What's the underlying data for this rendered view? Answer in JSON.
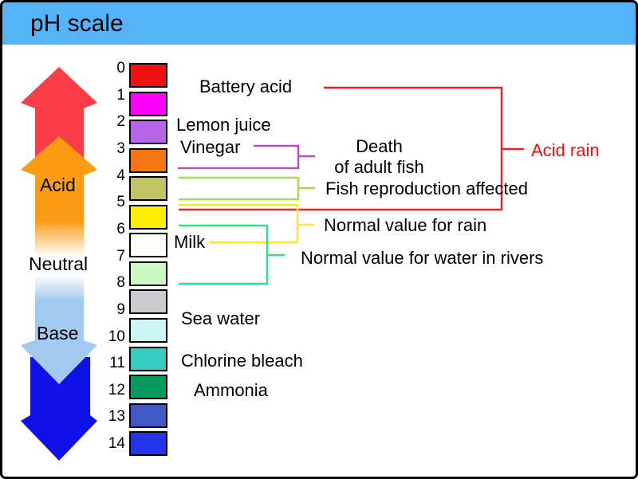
{
  "title": "pH scale",
  "colors": {
    "title_bar": "#55B3F7",
    "arrow_red": "#FA3E48",
    "arrow_orange": "#FA9B13",
    "arrow_light_blue": "#A2C9F0",
    "arrow_dark_blue": "#1010E8",
    "line_red": "#EE2222",
    "line_purple": "#BB4CCB",
    "line_yellow_green": "#A8DC50",
    "line_yellow": "#FFE63C",
    "line_green": "#2EE188",
    "acid_rain_text": "#EE1111"
  },
  "arrow": {
    "acid": "Acid",
    "neutral": "Neutral",
    "base": "Base"
  },
  "scale": {
    "numbers": [
      "0",
      "1",
      "2",
      "3",
      "4",
      "5",
      "6",
      "7",
      "8",
      "9",
      "10",
      "11",
      "12",
      "13",
      "14"
    ],
    "swatches": [
      {
        "range": "0-1",
        "color": "#EE1111"
      },
      {
        "range": "1-2",
        "color": "#FB00FB"
      },
      {
        "range": "2-3",
        "color": "#B965E9"
      },
      {
        "range": "3-4",
        "color": "#F57510"
      },
      {
        "range": "4-5",
        "color": "#C2C463"
      },
      {
        "range": "5-6",
        "color": "#FFEE00"
      },
      {
        "range": "6-7",
        "color": "#FBFFF8"
      },
      {
        "range": "7-8",
        "color": "#CBF8C3"
      },
      {
        "range": "8-9",
        "color": "#CCCACE"
      },
      {
        "range": "9-10",
        "color": "#C9F7F4"
      },
      {
        "range": "10-11",
        "color": "#35CCC4"
      },
      {
        "range": "11-12",
        "color": "#069A60"
      },
      {
        "range": "12-13",
        "color": "#4257C6"
      },
      {
        "range": "13-14",
        "color": "#2233E8"
      }
    ]
  },
  "labels": {
    "battery_acid": "Battery acid",
    "lemon_juice": "Lemon juice",
    "vinegar": "Vinegar",
    "milk": "Milk",
    "sea_water": "Sea water",
    "chlorine_bleach": "Chlorine bleach",
    "ammonia": "Ammonia"
  },
  "annotations": {
    "death_of_fish": "Death of adult fish",
    "fish_reproduction": "Fish reproduction affected",
    "normal_rain": "Normal value for rain",
    "normal_rivers": "Normal value for water in rivers",
    "acid_rain": "Acid rain"
  }
}
